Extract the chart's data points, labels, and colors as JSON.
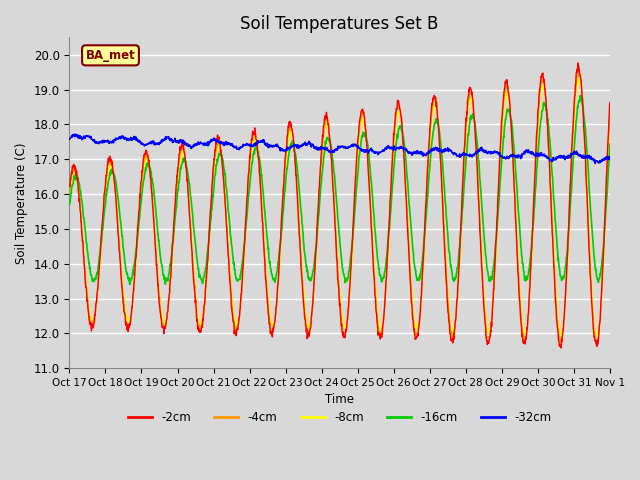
{
  "title": "Soil Temperatures Set B",
  "xlabel": "Time",
  "ylabel": "Soil Temperature (C)",
  "ylim": [
    11.0,
    20.5
  ],
  "yticks": [
    11.0,
    12.0,
    13.0,
    14.0,
    15.0,
    16.0,
    17.0,
    18.0,
    19.0,
    20.0
  ],
  "background_color": "#d8d8d8",
  "plot_bg_color": "#d8d8d8",
  "grid_color": "#ffffff",
  "annotation_text": "BA_met",
  "annotation_bg": "#ffff99",
  "annotation_border": "#800000",
  "colors": {
    "-2cm": "#ff0000",
    "-4cm": "#ff9900",
    "-8cm": "#ffff00",
    "-16cm": "#00cc00",
    "-32cm": "#0000ff"
  },
  "x_tick_labels": [
    "Oct 17",
    "Oct 18",
    "Oct 19",
    "Oct 20",
    "Oct 21",
    "Oct 22",
    "Oct 23",
    "Oct 24",
    "Oct 25",
    "Oct 26",
    "Oct 27",
    "Oct 28",
    "Oct 29",
    "Oct 30",
    "Oct 31",
    "Nov 1"
  ],
  "legend_entries": [
    "-2cm",
    "-4cm",
    "-8cm",
    "-16cm",
    "-32cm"
  ],
  "n_points": 1500
}
